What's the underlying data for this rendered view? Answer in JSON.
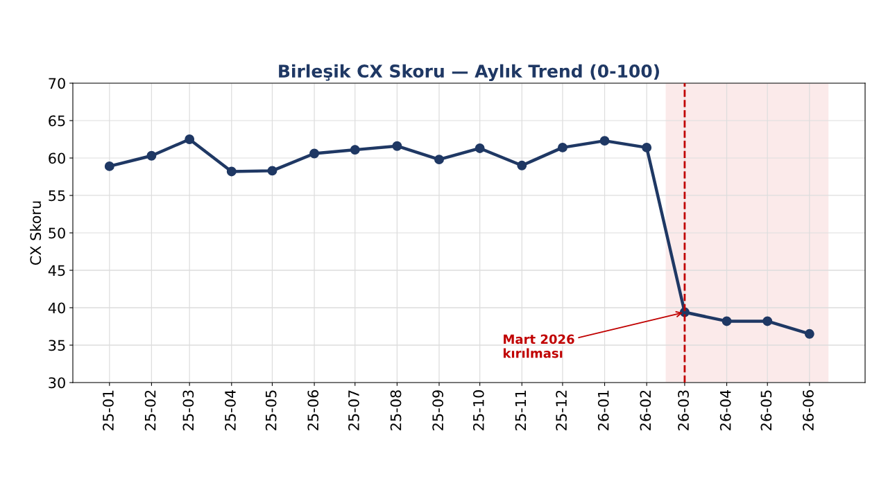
{
  "chart_data": {
    "type": "line",
    "title": "Birleşik CX Skoru — Aylık Trend (0-100)",
    "ylabel": "CX Skoru",
    "x": [
      "2025-01",
      "2025-02",
      "2025-03",
      "2025-04",
      "2025-05",
      "2025-06",
      "2025-07",
      "2025-08",
      "2025-09",
      "2025-10",
      "2025-11",
      "2025-12",
      "2026-01",
      "2026-02",
      "2026-03",
      "2026-04",
      "2026-05",
      "2026-06"
    ],
    "series": [
      {
        "color": "#1f3864",
        "values": [
          58.9,
          60.3,
          62.5,
          58.2,
          58.3,
          60.6,
          61.1,
          61.6,
          59.8,
          61.3,
          59.0,
          61.4,
          62.3,
          61.4,
          39.4,
          38.2,
          38.2,
          36.5
        ]
      }
    ],
    "xlim": [
      "2024-12-05",
      "2026-07-12"
    ],
    "xticks": [
      {
        "value": "2025-01",
        "label": "25-01"
      },
      {
        "value": "2025-02",
        "label": "25-02"
      },
      {
        "value": "2025-03",
        "label": "25-03"
      },
      {
        "value": "2025-04",
        "label": "25-04"
      },
      {
        "value": "2025-05",
        "label": "25-05"
      },
      {
        "value": "2025-06",
        "label": "25-06"
      },
      {
        "value": "2025-07",
        "label": "25-07"
      },
      {
        "value": "2025-08",
        "label": "25-08"
      },
      {
        "value": "2025-09",
        "label": "25-09"
      },
      {
        "value": "2025-10",
        "label": "25-10"
      },
      {
        "value": "2025-11",
        "label": "25-11"
      },
      {
        "value": "2025-12",
        "label": "25-12"
      },
      {
        "value": "2026-01",
        "label": "26-01"
      },
      {
        "value": "2026-02",
        "label": "26-02"
      },
      {
        "value": "2026-03",
        "label": "26-03"
      },
      {
        "value": "2026-04",
        "label": "26-04"
      },
      {
        "value": "2026-05",
        "label": "26-05"
      },
      {
        "value": "2026-06",
        "label": "26-06"
      }
    ],
    "ylim": [
      30,
      70
    ],
    "yticks": [
      30,
      35,
      40,
      45,
      50,
      55,
      60,
      65,
      70
    ],
    "ref_lines": [
      {
        "axis": "x",
        "value": "2026-03",
        "color": "#c00000",
        "line_style": "dashed"
      }
    ],
    "bands": [
      {
        "axis": "x",
        "from": "2026-02-15",
        "to": "2026-06-15",
        "color": "#fbeaea"
      }
    ],
    "annotations": [
      {
        "text": "Mart 2026\nkırılması",
        "x": "2026-03",
        "y": 39.4
      }
    ],
    "grid": true,
    "marker": "circle",
    "line_style": "solid",
    "legend": false
  }
}
